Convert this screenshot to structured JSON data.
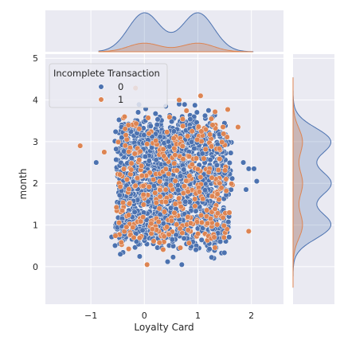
{
  "chart_data": {
    "type": "scatter",
    "style": "seaborn jointplot with marginal KDE",
    "xlabel": "Loyalty Card",
    "ylabel": "month",
    "xlim": [
      -1.85,
      2.6
    ],
    "ylim": [
      -0.9,
      5.1
    ],
    "x_ticks": [
      -1,
      0,
      1,
      2
    ],
    "y_ticks": [
      0,
      1,
      2,
      3,
      4,
      5
    ],
    "grid": true,
    "legend": {
      "title": "Incomplete Transaction",
      "placement": "top-left",
      "entries": [
        "0",
        "1"
      ]
    },
    "series": [
      {
        "name": "0",
        "color": "#4c72b0",
        "x_range": [
          -0.5,
          1.55
        ],
        "y_cluster_centers": [
          1,
          2,
          3
        ],
        "y_cluster_spread": 0.3,
        "outliers": [
          {
            "x": 0.4,
            "y": 3.85
          },
          {
            "x": 0.65,
            "y": 3.9
          },
          {
            "x": 1.2,
            "y": 3.75
          },
          {
            "x": 1.95,
            "y": 2.35
          },
          {
            "x": 2.05,
            "y": 2.35
          },
          {
            "x": 2.1,
            "y": 2.05
          },
          {
            "x": 1.85,
            "y": 2.5
          },
          {
            "x": -0.45,
            "y": 0.3
          },
          {
            "x": 0.7,
            "y": 0.05
          },
          {
            "x": 1.9,
            "y": 1.85
          },
          {
            "x": -0.9,
            "y": 2.5
          }
        ]
      },
      {
        "name": "1",
        "color": "#dd8452",
        "x_range": [
          -0.5,
          1.6
        ],
        "y_cluster_centers": [
          1,
          2,
          3
        ],
        "y_cluster_spread": 0.3,
        "outliers": [
          {
            "x": -1.2,
            "y": 2.9
          },
          {
            "x": 0.05,
            "y": 0.05
          },
          {
            "x": 1.05,
            "y": 4.1
          },
          {
            "x": 1.95,
            "y": 0.85
          },
          {
            "x": 1.75,
            "y": 3.35
          },
          {
            "x": -0.75,
            "y": 2.75
          },
          {
            "x": 0.65,
            "y": 4.0
          }
        ]
      }
    ],
    "marginal_x_kde": {
      "peaks": [
        0.0,
        1.0
      ],
      "relative_height_series_0": 1.0,
      "relative_height_series_1": 0.22
    },
    "marginal_y_kde": {
      "peaks": [
        1,
        2,
        3
      ],
      "relative_height_series_0": 1.0,
      "relative_height_series_1": 0.25
    }
  }
}
